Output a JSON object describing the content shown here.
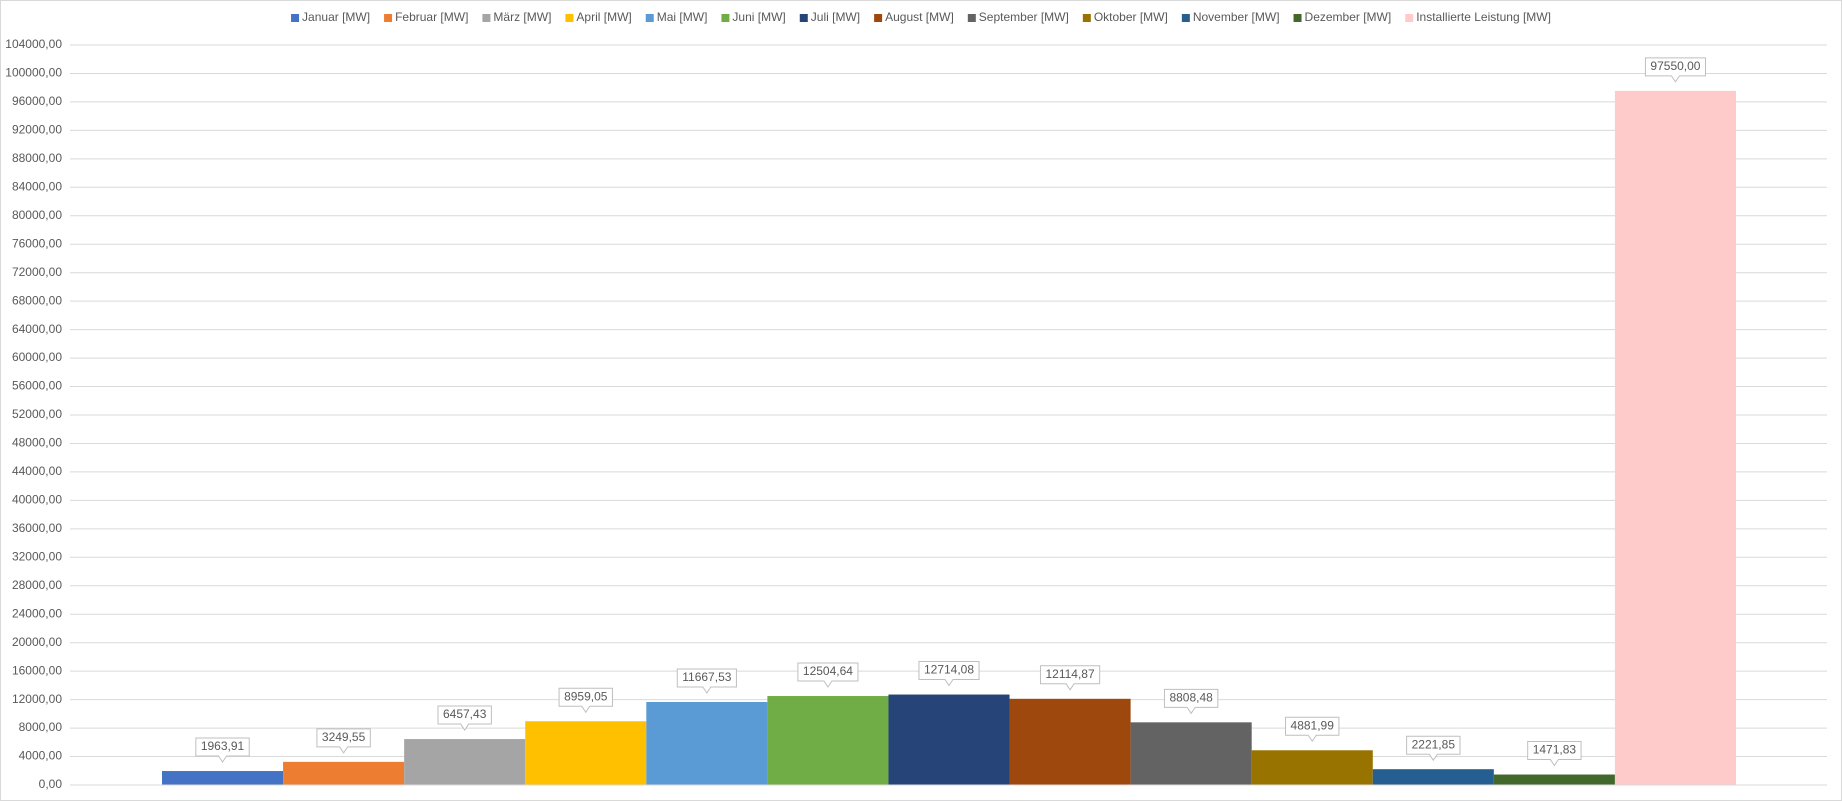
{
  "chart_data": {
    "type": "bar",
    "series": [
      {
        "name": "Januar [MW]",
        "color": "#4472c4",
        "values": [
          1963.91
        ],
        "value_labels": [
          "1963,91"
        ]
      },
      {
        "name": "Februar [MW]",
        "color": "#ed7d31",
        "values": [
          3249.55
        ],
        "value_labels": [
          "3249,55"
        ]
      },
      {
        "name": "März [MW]",
        "color": "#a5a5a5",
        "values": [
          6457.43
        ],
        "value_labels": [
          "6457,43"
        ]
      },
      {
        "name": "April [MW]",
        "color": "#ffc000",
        "values": [
          8959.05
        ],
        "value_labels": [
          "8959,05"
        ]
      },
      {
        "name": "Mai [MW]",
        "color": "#5b9bd5",
        "values": [
          11667.53
        ],
        "value_labels": [
          "11667,53"
        ]
      },
      {
        "name": "Juni [MW]",
        "color": "#70ad47",
        "values": [
          12504.64
        ],
        "value_labels": [
          "12504,64"
        ]
      },
      {
        "name": "Juli [MW]",
        "color": "#264478",
        "values": [
          12714.08
        ],
        "value_labels": [
          "12714,08"
        ]
      },
      {
        "name": "August [MW]",
        "color": "#9e480e",
        "values": [
          12114.87
        ],
        "value_labels": [
          "12114,87"
        ]
      },
      {
        "name": "September [MW]",
        "color": "#636363",
        "values": [
          8808.48
        ],
        "value_labels": [
          "8808,48"
        ]
      },
      {
        "name": "Oktober [MW]",
        "color": "#997300",
        "values": [
          4881.99
        ],
        "value_labels": [
          "4881,99"
        ]
      },
      {
        "name": "November [MW]",
        "color": "#255e91",
        "values": [
          2221.85
        ],
        "value_labels": [
          "2221,85"
        ]
      },
      {
        "name": "Dezember [MW]",
        "color": "#43682b",
        "values": [
          1471.83
        ],
        "value_labels": [
          "1471,83"
        ]
      },
      {
        "name": "Installierte Leistung [MW]",
        "color": "#ffcaca",
        "values": [
          97550
        ],
        "value_labels": [
          "97550,00"
        ]
      }
    ],
    "ylim": [
      0,
      104000
    ],
    "yticks": [
      {
        "value": 0,
        "label": "0,00"
      },
      {
        "value": 4000,
        "label": "4000,00"
      },
      {
        "value": 8000,
        "label": "8000,00"
      },
      {
        "value": 12000,
        "label": "12000,00"
      },
      {
        "value": 16000,
        "label": "16000,00"
      },
      {
        "value": 20000,
        "label": "20000,00"
      },
      {
        "value": 24000,
        "label": "24000,00"
      },
      {
        "value": 28000,
        "label": "28000,00"
      },
      {
        "value": 32000,
        "label": "32000,00"
      },
      {
        "value": 36000,
        "label": "36000,00"
      },
      {
        "value": 40000,
        "label": "40000,00"
      },
      {
        "value": 44000,
        "label": "44000,00"
      },
      {
        "value": 48000,
        "label": "48000,00"
      },
      {
        "value": 52000,
        "label": "52000,00"
      },
      {
        "value": 56000,
        "label": "56000,00"
      },
      {
        "value": 60000,
        "label": "60000,00"
      },
      {
        "value": 64000,
        "label": "64000,00"
      },
      {
        "value": 68000,
        "label": "68000,00"
      },
      {
        "value": 72000,
        "label": "72000,00"
      },
      {
        "value": 76000,
        "label": "76000,00"
      },
      {
        "value": 80000,
        "label": "80000,00"
      },
      {
        "value": 84000,
        "label": "84000,00"
      },
      {
        "value": 88000,
        "label": "88000,00"
      },
      {
        "value": 92000,
        "label": "92000,00"
      },
      {
        "value": 96000,
        "label": "96000,00"
      },
      {
        "value": 100000,
        "label": "100000,00"
      },
      {
        "value": 104000,
        "label": "104000,00"
      }
    ],
    "grid": true,
    "legend": "top"
  }
}
